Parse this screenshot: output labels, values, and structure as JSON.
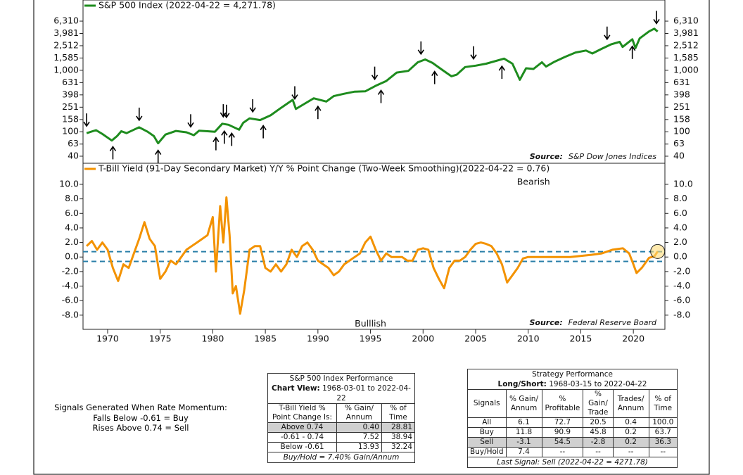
{
  "chart_data": [
    {
      "type": "line",
      "log_scale": true,
      "x": [
        1968.0,
        1968.9,
        1969.5,
        1970.4,
        1970.9,
        1971.3,
        1971.8,
        1972.5,
        1973.0,
        1973.8,
        1974.4,
        1974.8,
        1975.5,
        1976.5,
        1977.5,
        1978.2,
        1978.7,
        1979.5,
        1980.2,
        1980.9,
        1981.5,
        1982.5,
        1982.9,
        1983.5,
        1984.5,
        1985.5,
        1986.5,
        1987.6,
        1987.9,
        1988.5,
        1989.6,
        1990.8,
        1991.5,
        1992.5,
        1993.5,
        1994.5,
        1995.5,
        1996.5,
        1997.5,
        1998.6,
        1999.5,
        2000.2,
        2000.9,
        2001.7,
        2002.7,
        2003.2,
        2004.0,
        2005.0,
        2006.0,
        2007.7,
        2008.5,
        2009.2,
        2009.8,
        2010.5,
        2011.3,
        2011.7,
        2012.5,
        2013.5,
        2014.5,
        2015.5,
        2016.1,
        2016.9,
        2017.9,
        2018.7,
        2018.98,
        2019.9,
        2020.2,
        2020.6,
        2021.5,
        2021.99,
        2022.31
      ],
      "series": [
        {
          "name": "S&P 500 Index (2022-04-22 = 4,271.78)",
          "color": "#1e8c1e",
          "values": [
            95,
            106,
            92,
            72,
            85,
            102,
            95,
            108,
            118,
            100,
            85,
            65,
            90,
            103,
            98,
            88,
            104,
            102,
            100,
            135,
            130,
            108,
            140,
            165,
            155,
            185,
            245,
            330,
            235,
            270,
            350,
            310,
            380,
            415,
            450,
            455,
            560,
            670,
            920,
            980,
            1350,
            1500,
            1320,
            1050,
            800,
            850,
            1130,
            1190,
            1280,
            1550,
            1280,
            700,
            1080,
            1050,
            1350,
            1150,
            1380,
            1650,
            1950,
            2100,
            1880,
            2200,
            2650,
            2900,
            2400,
            3200,
            2300,
            3300,
            4300,
            4750,
            4271.78
          ]
        }
      ],
      "sell_signals": [
        1968.0,
        1973.0,
        1977.9,
        1981.0,
        1981.3,
        1983.8,
        1987.8,
        1995.4,
        1999.8,
        2004.8,
        2017.5,
        2022.2
      ],
      "buy_signals": [
        1970.5,
        1974.8,
        1980.3,
        1981.1,
        1981.8,
        1984.8,
        1990.0,
        1996.0,
        2001.1,
        2007.5,
        2019.9
      ],
      "xlim": [
        1967.66,
        2023.0
      ],
      "ylim": [
        30.7,
        13930
      ],
      "yticks": [
        {
          "value": 6310,
          "label": "6,310"
        },
        {
          "value": 3981,
          "label": "3,981"
        },
        {
          "value": 2512,
          "label": "2,512"
        },
        {
          "value": 1585,
          "label": "1,585"
        },
        {
          "value": 1000,
          "label": "1,000"
        },
        631,
        398,
        251,
        158,
        100,
        63,
        40
      ],
      "source_label": "Source:",
      "source": "S&P Dow Jones Indices"
    },
    {
      "type": "line",
      "x": [
        1968.0,
        1968.5,
        1969.0,
        1969.5,
        1970.0,
        1970.5,
        1971.0,
        1971.5,
        1972.0,
        1972.5,
        1973.0,
        1973.5,
        1974.0,
        1974.5,
        1975.0,
        1975.5,
        1976.0,
        1976.5,
        1977.0,
        1977.5,
        1978.0,
        1978.5,
        1979.0,
        1979.5,
        1980.0,
        1980.3,
        1980.7,
        1981.0,
        1981.3,
        1981.6,
        1981.9,
        1982.2,
        1982.6,
        1983.0,
        1983.5,
        1984.0,
        1984.5,
        1985.0,
        1985.5,
        1986.0,
        1986.5,
        1987.0,
        1987.5,
        1988.0,
        1988.5,
        1989.0,
        1989.5,
        1990.0,
        1990.5,
        1991.0,
        1991.5,
        1992.0,
        1992.5,
        1993.0,
        1993.5,
        1994.0,
        1994.5,
        1995.0,
        1995.5,
        1996.0,
        1996.5,
        1997.0,
        1998.0,
        1998.5,
        1999.0,
        1999.5,
        2000.0,
        2000.5,
        2001.0,
        2001.5,
        2002.0,
        2002.5,
        2003.0,
        2003.5,
        2004.0,
        2004.5,
        2005.0,
        2005.5,
        2006.0,
        2006.5,
        2007.0,
        2007.5,
        2008.0,
        2008.5,
        2009.0,
        2009.5,
        2010.0,
        2012.0,
        2014.0,
        2016.0,
        2017.0,
        2018.0,
        2019.0,
        2019.6,
        2020.0,
        2020.3,
        2020.8,
        2021.5,
        2022.0,
        2022.31
      ],
      "series": [
        {
          "name": "T-Bill Yield (91-Day Secondary Market) Y/Y % Point Change (Two-Week Smoothing)(2022-04-22 = 0.76)",
          "color": "#f39200",
          "values": [
            1.5,
            2.2,
            1.0,
            2.0,
            1.0,
            -1.5,
            -3.3,
            -1.0,
            -1.5,
            0.5,
            2.5,
            4.8,
            2.5,
            1.5,
            -3.0,
            -2.0,
            -0.5,
            -1.0,
            0.0,
            1.0,
            1.5,
            2.0,
            2.5,
            3.0,
            5.5,
            -2.0,
            7.0,
            2.0,
            8.2,
            3.0,
            -5.0,
            -4.0,
            -7.8,
            -4.5,
            1.0,
            1.5,
            1.5,
            -1.5,
            -2.0,
            -1.0,
            -2.0,
            -1.0,
            1.0,
            0.0,
            1.5,
            2.0,
            1.0,
            -0.5,
            -1.0,
            -1.5,
            -2.5,
            -2.0,
            -1.0,
            -0.5,
            0.0,
            0.5,
            2.0,
            2.8,
            1.0,
            -0.5,
            0.5,
            0.0,
            0.0,
            -0.5,
            -0.5,
            1.0,
            1.2,
            1.0,
            -1.5,
            -3.0,
            -4.3,
            -1.5,
            -0.5,
            -0.5,
            0.0,
            1.0,
            1.8,
            2.0,
            1.8,
            1.5,
            0.5,
            -1.0,
            -3.5,
            -2.5,
            -1.5,
            -0.2,
            0.0,
            0.0,
            0.0,
            0.3,
            0.5,
            1.0,
            1.2,
            0.5,
            -1.0,
            -2.2,
            -1.5,
            -0.1,
            0.1,
            0.76
          ]
        }
      ],
      "reference_lines": [
        0.74,
        -0.61
      ],
      "reference_color": "#2a7fa8",
      "annotations": [
        {
          "text": "Bearish",
          "x": 2010.5,
          "y": 10.3
        },
        {
          "text": "Bulllish",
          "x": 1995.0,
          "y": -9.2
        }
      ],
      "xlim": [
        1967.66,
        2023.0
      ],
      "xticks": [
        1970,
        1975,
        1980,
        1985,
        1990,
        1995,
        2000,
        2005,
        2010,
        2015,
        2020
      ],
      "ylim": [
        -9.95,
        12.9
      ],
      "yticks": [
        {
          "value": 10,
          "label": "10.0"
        },
        {
          "value": 8,
          "label": "8.0"
        },
        {
          "value": 6,
          "label": "6.0"
        },
        {
          "value": 4,
          "label": "4.0"
        },
        {
          "value": 2,
          "label": "2.0"
        },
        {
          "value": 0,
          "label": "0.0"
        },
        {
          "value": -2,
          "label": "-2.0"
        },
        {
          "value": -4,
          "label": "-4.0"
        },
        {
          "value": -6,
          "label": "-6.0"
        },
        {
          "value": -8,
          "label": "-8.0"
        }
      ],
      "source_label": "Source:",
      "source": "Federal Reserve Board"
    }
  ],
  "signals_note": {
    "title": "Signals Generated When Rate Momentum:",
    "lines": [
      "Falls Below -0.61 = Buy",
      "Rises Above 0.74 = Sell"
    ]
  },
  "tables": [
    {
      "title": "S&P 500 Index Performance",
      "subtitle_label": "Chart View:",
      "subtitle": "1968-03-01 to 2022-04-22",
      "columns": [
        "T-Bill Yield % Point Change Is:",
        "% Gain/ Annum",
        "% of Time"
      ],
      "rows": [
        [
          "Above 0.74",
          "0.40",
          "28.81"
        ],
        [
          "-0.61 - 0.74",
          "7.52",
          "38.94"
        ],
        [
          "Below -0.61",
          "13.93",
          "32.24"
        ]
      ],
      "shaded_row": 0,
      "footer": "Buy/Hold = 7.40% Gain/Annum"
    },
    {
      "title": "Strategy Performance",
      "subtitle_label": "Long/Short:",
      "subtitle": "1968-03-15 to 2022-04-22",
      "columns": [
        "Signals",
        "% Gain/ Annum",
        "% Profitable",
        "% Gain/ Trade",
        "Trades/ Annum",
        "% of Time"
      ],
      "rows": [
        [
          "All",
          "6.1",
          "72.7",
          "20.5",
          "0.4",
          "100.0"
        ],
        [
          "Buy",
          "11.8",
          "90.9",
          "45.8",
          "0.2",
          "63.7"
        ],
        [
          "Sell",
          "-3.1",
          "54.5",
          "-2.8",
          "0.2",
          "36.3"
        ],
        [
          "Buy/Hold",
          "7.4",
          "--",
          "--",
          "--",
          "--"
        ]
      ],
      "shaded_row": 2,
      "footer": "Last Signal: Sell (2022-04-22 = 4271.78)"
    }
  ]
}
